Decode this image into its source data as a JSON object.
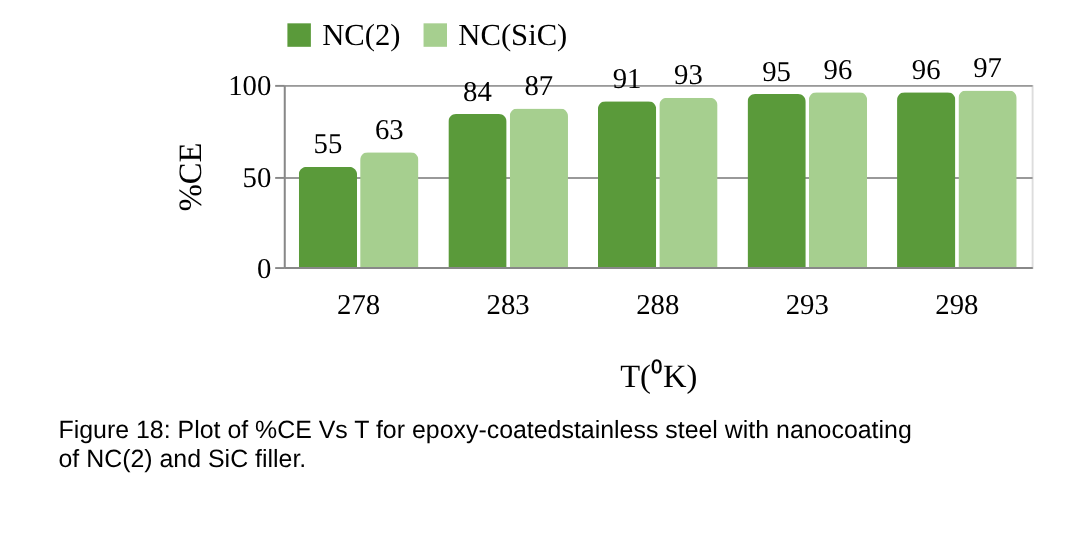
{
  "chart_data": {
    "type": "bar",
    "categories": [
      "278",
      "283",
      "288",
      "293",
      "298"
    ],
    "series": [
      {
        "name": "NC(2)",
        "color": "#5a9a3a",
        "values": [
          55,
          84,
          91,
          95,
          96
        ]
      },
      {
        "name": "NC(SiC)",
        "color": "#a6cf8f",
        "values": [
          63,
          87,
          93,
          96,
          97
        ]
      }
    ],
    "ylabel": "%CE",
    "xlabel": "T(⁰K)",
    "ylim": [
      0,
      100
    ],
    "yticks": [
      0,
      50,
      100
    ],
    "grid": "y",
    "legend": "top",
    "data_labels": true,
    "annotations": [
      "Figure 18: Plot of %CE Vs T for epoxy-coatedstainless steel with nanocoating of NC(2) and SiC filler."
    ]
  }
}
